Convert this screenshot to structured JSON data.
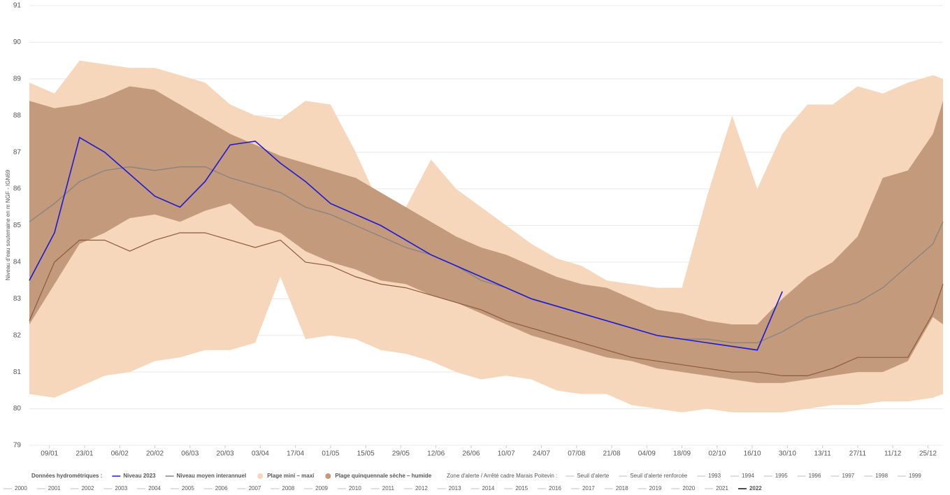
{
  "chart_data": {
    "type": "band-line",
    "y_label": "Niveau d'eau souterraine en m NGF - IGN69",
    "x": [
      1,
      11,
      21,
      31,
      41,
      51,
      61,
      71,
      81,
      91,
      101,
      111,
      121,
      131,
      141,
      151,
      161,
      171,
      181,
      191,
      201,
      211,
      221,
      231,
      241,
      251,
      261,
      271,
      281,
      291,
      301,
      311,
      321,
      331,
      341,
      351,
      361,
      365
    ],
    "xlim": [
      1,
      365
    ],
    "xticks": [
      {
        "value": 9,
        "label": "09/01"
      },
      {
        "value": 23,
        "label": "23/01"
      },
      {
        "value": 37,
        "label": "06/02"
      },
      {
        "value": 51,
        "label": "20/02"
      },
      {
        "value": 65,
        "label": "06/03"
      },
      {
        "value": 79,
        "label": "20/03"
      },
      {
        "value": 93,
        "label": "03/04"
      },
      {
        "value": 107,
        "label": "17/04"
      },
      {
        "value": 121,
        "label": "01/05"
      },
      {
        "value": 135,
        "label": "15/05"
      },
      {
        "value": 149,
        "label": "29/05"
      },
      {
        "value": 163,
        "label": "12/06"
      },
      {
        "value": 177,
        "label": "26/06"
      },
      {
        "value": 191,
        "label": "10/07"
      },
      {
        "value": 205,
        "label": "24/07"
      },
      {
        "value": 219,
        "label": "07/08"
      },
      {
        "value": 233,
        "label": "21/08"
      },
      {
        "value": 247,
        "label": "04/09"
      },
      {
        "value": 261,
        "label": "18/09"
      },
      {
        "value": 275,
        "label": "02/10"
      },
      {
        "value": 289,
        "label": "16/10"
      },
      {
        "value": 303,
        "label": "30/10"
      },
      {
        "value": 317,
        "label": "13/11"
      },
      {
        "value": 331,
        "label": "27/11"
      },
      {
        "value": 345,
        "label": "11/12"
      },
      {
        "value": 359,
        "label": "25/12"
      }
    ],
    "ylim": [
      79,
      91
    ],
    "yticks": [
      79,
      80,
      81,
      82,
      83,
      84,
      85,
      86,
      87,
      88,
      89,
      90,
      91
    ],
    "grid": true,
    "bands": [
      {
        "name": "Plage mini – maxi",
        "color": "#f6d7bb",
        "upper": [
          88.9,
          88.6,
          89.5,
          89.4,
          89.3,
          89.3,
          89.1,
          88.9,
          88.3,
          88.0,
          87.9,
          88.4,
          88.3,
          87.0,
          85.5,
          85.5,
          86.8,
          86.0,
          85.5,
          85.0,
          84.5,
          84.1,
          83.9,
          83.5,
          83.4,
          83.3,
          83.3,
          85.8,
          88.0,
          86.0,
          87.5,
          88.3,
          88.3,
          88.8,
          88.6,
          88.9,
          89.1,
          89.0
        ],
        "lower": [
          80.4,
          80.3,
          80.6,
          80.9,
          81.0,
          81.3,
          81.4,
          81.6,
          81.6,
          81.8,
          83.6,
          81.9,
          82.0,
          81.9,
          81.6,
          81.5,
          81.3,
          81.0,
          80.8,
          80.9,
          80.8,
          80.5,
          80.4,
          80.4,
          80.1,
          80.0,
          79.9,
          80.0,
          79.9,
          79.9,
          79.9,
          80.0,
          80.1,
          80.1,
          80.2,
          80.2,
          80.3,
          80.4
        ]
      },
      {
        "name": "Plage quinquennale sèche – humide",
        "color": "#c49a7c",
        "upper": [
          88.4,
          88.2,
          88.3,
          88.5,
          88.8,
          88.7,
          88.3,
          87.9,
          87.5,
          87.2,
          86.9,
          86.7,
          86.5,
          86.3,
          85.9,
          85.5,
          85.1,
          84.7,
          84.4,
          84.2,
          83.9,
          83.6,
          83.4,
          83.3,
          83.0,
          82.7,
          82.6,
          82.4,
          82.3,
          82.3,
          83.0,
          83.6,
          84.0,
          84.7,
          86.3,
          86.5,
          87.5,
          88.4
        ],
        "lower": [
          82.3,
          83.4,
          84.5,
          84.8,
          85.2,
          85.3,
          85.1,
          85.4,
          85.6,
          85.0,
          84.8,
          84.3,
          84.0,
          83.8,
          83.5,
          83.4,
          83.1,
          82.9,
          82.6,
          82.3,
          82.0,
          81.8,
          81.6,
          81.4,
          81.3,
          81.1,
          81.0,
          80.9,
          80.8,
          80.7,
          80.7,
          80.8,
          80.9,
          81.0,
          81.0,
          81.3,
          82.5,
          82.3
        ]
      }
    ],
    "series": [
      {
        "name": "Niveau 2023",
        "color": "#1a1ad6",
        "width": 1.6,
        "values": [
          83.5,
          84.8,
          87.4,
          87.0,
          86.4,
          85.8,
          85.5,
          86.2,
          87.2,
          87.3,
          86.7,
          86.2,
          85.6,
          85.3,
          85.0,
          84.6,
          84.2,
          83.9,
          83.6,
          83.3,
          83.0,
          82.8,
          82.6,
          82.4,
          82.2,
          82.0,
          81.9,
          81.8,
          81.7,
          81.6,
          83.2,
          null,
          null,
          null,
          null,
          null,
          null,
          null
        ]
      },
      {
        "name": "Niveau moyen interannuel",
        "color": "#8a8480",
        "width": 1.4,
        "values": [
          85.1,
          85.6,
          86.2,
          86.5,
          86.6,
          86.5,
          86.6,
          86.6,
          86.3,
          86.1,
          85.9,
          85.5,
          85.3,
          85.0,
          84.7,
          84.4,
          84.2,
          83.9,
          83.5,
          83.3,
          83.0,
          82.8,
          82.6,
          82.4,
          82.2,
          82.0,
          81.9,
          81.9,
          81.8,
          81.8,
          82.1,
          82.5,
          82.7,
          82.9,
          83.3,
          83.9,
          84.5,
          85.1
        ]
      },
      {
        "name": "2022",
        "color": "#8b5a3c",
        "width": 1.2,
        "values": [
          82.4,
          84.0,
          84.6,
          84.6,
          84.3,
          84.6,
          84.8,
          84.8,
          84.6,
          84.4,
          84.6,
          84.0,
          83.9,
          83.6,
          83.4,
          83.3,
          83.1,
          82.9,
          82.7,
          82.4,
          82.2,
          82.0,
          81.8,
          81.6,
          81.4,
          81.3,
          81.2,
          81.1,
          81.0,
          81.0,
          80.9,
          80.9,
          81.1,
          81.4,
          81.4,
          81.4,
          82.6,
          83.4
        ]
      }
    ],
    "legend_groups": [
      "Données hydrométriques :",
      "Zone d'alerte / Arrêté cadre Marais Poitevin :"
    ],
    "extra_legend": [
      "Seuil d'alerte",
      "Seuil d'alerte renforcée",
      "1993",
      "1994",
      "1995",
      "1996",
      "1997",
      "1998",
      "1999",
      "2000",
      "2001",
      "2002",
      "2003",
      "2004",
      "2005",
      "2006",
      "2007",
      "2008",
      "2009",
      "2010",
      "2011",
      "2012",
      "2013",
      "2014",
      "2015",
      "2016",
      "2017",
      "2018",
      "2019",
      "2020",
      "2021"
    ]
  }
}
